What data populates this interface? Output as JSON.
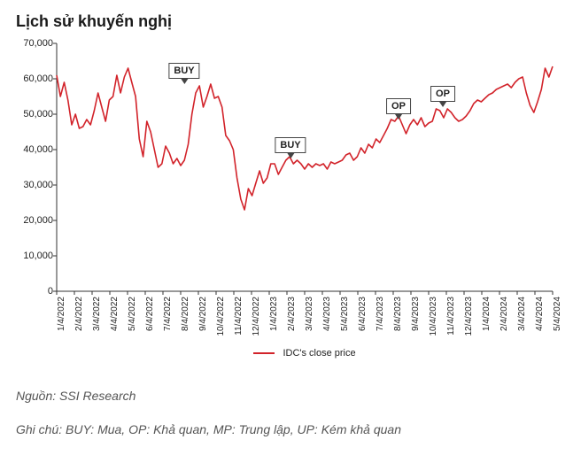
{
  "title": "Lịch sử khuyến nghị",
  "chart": {
    "type": "line",
    "line_color": "#d2232a",
    "line_width": 1.6,
    "background_color": "#ffffff",
    "axis_color": "#333333",
    "tick_length": 4,
    "ylim": [
      0,
      70000
    ],
    "yticks": [
      0,
      10000,
      20000,
      30000,
      40000,
      50000,
      60000,
      70000
    ],
    "ytick_labels": [
      "0",
      "10,000",
      "20,000",
      "30,000",
      "40,000",
      "50,000",
      "60,000",
      "70,000"
    ],
    "xlim": [
      0,
      28
    ],
    "x_categories": [
      "1/4/2022",
      "2/4/2022",
      "3/4/2022",
      "4/4/2022",
      "5/4/2022",
      "6/4/2022",
      "7/4/2022",
      "8/4/2022",
      "9/4/2022",
      "10/4/2022",
      "11/4/2022",
      "12/4/2022",
      "1/4/2023",
      "2/4/2023",
      "3/4/2023",
      "4/4/2023",
      "5/4/2023",
      "6/4/2023",
      "7/4/2023",
      "8/4/2023",
      "9/4/2023",
      "10/4/2023",
      "11/4/2023",
      "12/4/2023",
      "1/4/2024",
      "2/4/2024",
      "3/4/2024",
      "4/4/2024",
      "5/4/2024"
    ],
    "series_label": "IDC's close price",
    "values_dense": [
      61000,
      55000,
      59000,
      54000,
      47000,
      50000,
      46000,
      46500,
      48500,
      47000,
      51000,
      56000,
      52000,
      48000,
      54000,
      55000,
      61000,
      56000,
      60500,
      63000,
      59000,
      55000,
      43000,
      38000,
      48000,
      45000,
      40000,
      35000,
      36000,
      41000,
      39000,
      36000,
      37500,
      35500,
      37000,
      41500,
      50000,
      56000,
      58000,
      52000,
      55000,
      58500,
      54500,
      55000,
      52000,
      44000,
      42500,
      40000,
      32000,
      26000,
      23000,
      29000,
      27000,
      30500,
      34000,
      30500,
      32000,
      36000,
      36000,
      33000,
      35000,
      37000,
      38000,
      36000,
      37000,
      36000,
      34500,
      36000,
      35000,
      36000,
      35500,
      36000,
      34500,
      36500,
      36000,
      36500,
      37000,
      38500,
      39000,
      37000,
      38000,
      40500,
      39000,
      41500,
      40500,
      43000,
      42000,
      44000,
      46000,
      48500,
      48000,
      49500,
      47000,
      44500,
      47000,
      48500,
      47000,
      49000,
      46500,
      47500,
      48000,
      51500,
      51000,
      49000,
      51500,
      50500,
      49000,
      48000,
      48500,
      49500,
      51000,
      53000,
      54000,
      53500,
      54500,
      55500,
      56000,
      57000,
      57500,
      58000,
      58500,
      57500,
      59000,
      60000,
      60500,
      56000,
      52500,
      50500,
      53500,
      57000,
      63000,
      60500,
      63500
    ],
    "annotations": [
      {
        "label": "BUY",
        "x_i": 7.2,
        "y_val": 58000,
        "box_offset_y": -26
      },
      {
        "label": "BUY",
        "x_i": 13.2,
        "y_val": 37000,
        "box_offset_y": -26
      },
      {
        "label": "OP",
        "x_i": 19.3,
        "y_val": 48000,
        "box_offset_y": -26
      },
      {
        "label": "OP",
        "x_i": 21.8,
        "y_val": 51500,
        "box_offset_y": -26
      }
    ],
    "label_fontsize": 11,
    "tick_fontsize": 10
  },
  "source": "Nguồn: SSI Research",
  "note": "Ghi chú: BUY: Mua, OP: Khả quan, MP: Trung lập, UP: Kém khả quan"
}
